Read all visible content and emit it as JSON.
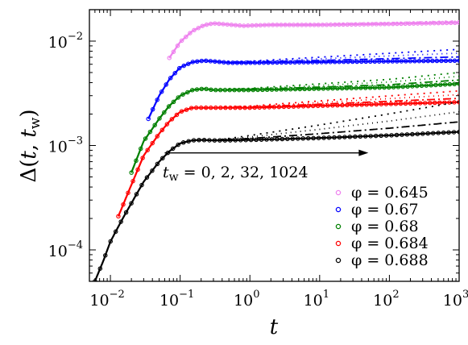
{
  "chart_data": {
    "type": "scatter",
    "title": "",
    "xlabel": "t",
    "ylabel": "Δ(t, t_w)",
    "x_scale": "log",
    "y_scale": "log",
    "xlim": [
      0.005,
      1000
    ],
    "ylim": [
      5e-05,
      0.02
    ],
    "x_ticks": [
      {
        "value": 0.01,
        "base": "10",
        "exp": "−2"
      },
      {
        "value": 0.1,
        "base": "10",
        "exp": "−1"
      },
      {
        "value": 1,
        "base": "10",
        "exp": "0"
      },
      {
        "value": 10,
        "base": "10",
        "exp": "1"
      },
      {
        "value": 100,
        "base": "10",
        "exp": "2"
      },
      {
        "value": 1000,
        "base": "10",
        "exp": "3"
      }
    ],
    "y_ticks": [
      {
        "value": 0.0001,
        "base": "10",
        "exp": "−4"
      },
      {
        "value": 0.001,
        "base": "10",
        "exp": "−3"
      },
      {
        "value": 0.01,
        "base": "10",
        "exp": "−2"
      }
    ],
    "legend_position": "bottom-right",
    "grid": false,
    "annotation": {
      "text": "t_w = 0, 2, 32, 1024",
      "text_main": "t",
      "text_sub": "w",
      "text_rest": " = 0, 2, 32, 1024",
      "arrow": {
        "from": [
          0.06,
          0.00085
        ],
        "to": [
          50,
          0.00085
        ]
      }
    },
    "series": [
      {
        "name": "φ = 0.645",
        "phi": "0.645",
        "color": "#ee82ee",
        "initial_x": 0.07,
        "plateau_start_x": 0.3,
        "plateau_y": 0.0145,
        "waiting_time_values_y": {
          "tw_0": 0.015,
          "tw_2": 0.015,
          "tw_32": 0.015,
          "tw_1024": 0.015
        },
        "x": [
          0.07,
          0.1,
          0.15,
          0.22,
          0.3,
          0.5,
          0.8,
          1,
          2,
          10,
          100,
          1000
        ],
        "y": [
          0.0069,
          0.0098,
          0.0125,
          0.0142,
          0.0148,
          0.0144,
          0.014,
          0.0141,
          0.0143,
          0.0143,
          0.0146,
          0.015
        ]
      },
      {
        "name": "φ = 0.67",
        "phi": "0.67",
        "color": "#0000ff",
        "x": [
          0.035,
          0.05,
          0.07,
          0.1,
          0.15,
          0.22,
          0.3,
          0.5,
          0.8,
          1,
          10,
          100,
          1000
        ],
        "y": [
          0.0018,
          0.003,
          0.0043,
          0.0056,
          0.0063,
          0.0065,
          0.0064,
          0.0062,
          0.0062,
          0.0062,
          0.0063,
          0.0064,
          0.0065
        ]
      },
      {
        "name": "φ = 0.68",
        "phi": "0.68",
        "color": "#008000",
        "x": [
          0.02,
          0.03,
          0.05,
          0.07,
          0.1,
          0.15,
          0.22,
          0.3,
          0.5,
          1,
          10,
          100,
          1000
        ],
        "y": [
          0.00055,
          0.0011,
          0.0018,
          0.0024,
          0.003,
          0.0034,
          0.0035,
          0.0034,
          0.0034,
          0.0034,
          0.0035,
          0.0036,
          0.0039
        ]
      },
      {
        "name": "φ = 0.684",
        "phi": "0.684",
        "color": "#ff0000",
        "x": [
          0.013,
          0.02,
          0.03,
          0.05,
          0.07,
          0.1,
          0.15,
          0.2,
          0.3,
          0.5,
          1,
          10,
          100,
          1000
        ],
        "y": [
          0.00021,
          0.00042,
          0.0008,
          0.0013,
          0.0017,
          0.0021,
          0.0023,
          0.0023,
          0.0023,
          0.0023,
          0.0023,
          0.0024,
          0.0025,
          0.0026
        ]
      },
      {
        "name": "φ = 0.688",
        "phi": "0.688",
        "color": "#000000",
        "x": [
          0.006,
          0.008,
          0.01,
          0.015,
          0.02,
          0.03,
          0.05,
          0.07,
          0.1,
          0.15,
          0.2,
          0.3,
          0.5,
          1,
          10,
          100,
          1000
        ],
        "y": [
          5e-05,
          8e-05,
          0.00012,
          0.0002,
          0.00028,
          0.00045,
          0.0007,
          0.00088,
          0.00105,
          0.00112,
          0.00113,
          0.00112,
          0.00112,
          0.00113,
          0.00118,
          0.00125,
          0.00135
        ]
      }
    ]
  }
}
